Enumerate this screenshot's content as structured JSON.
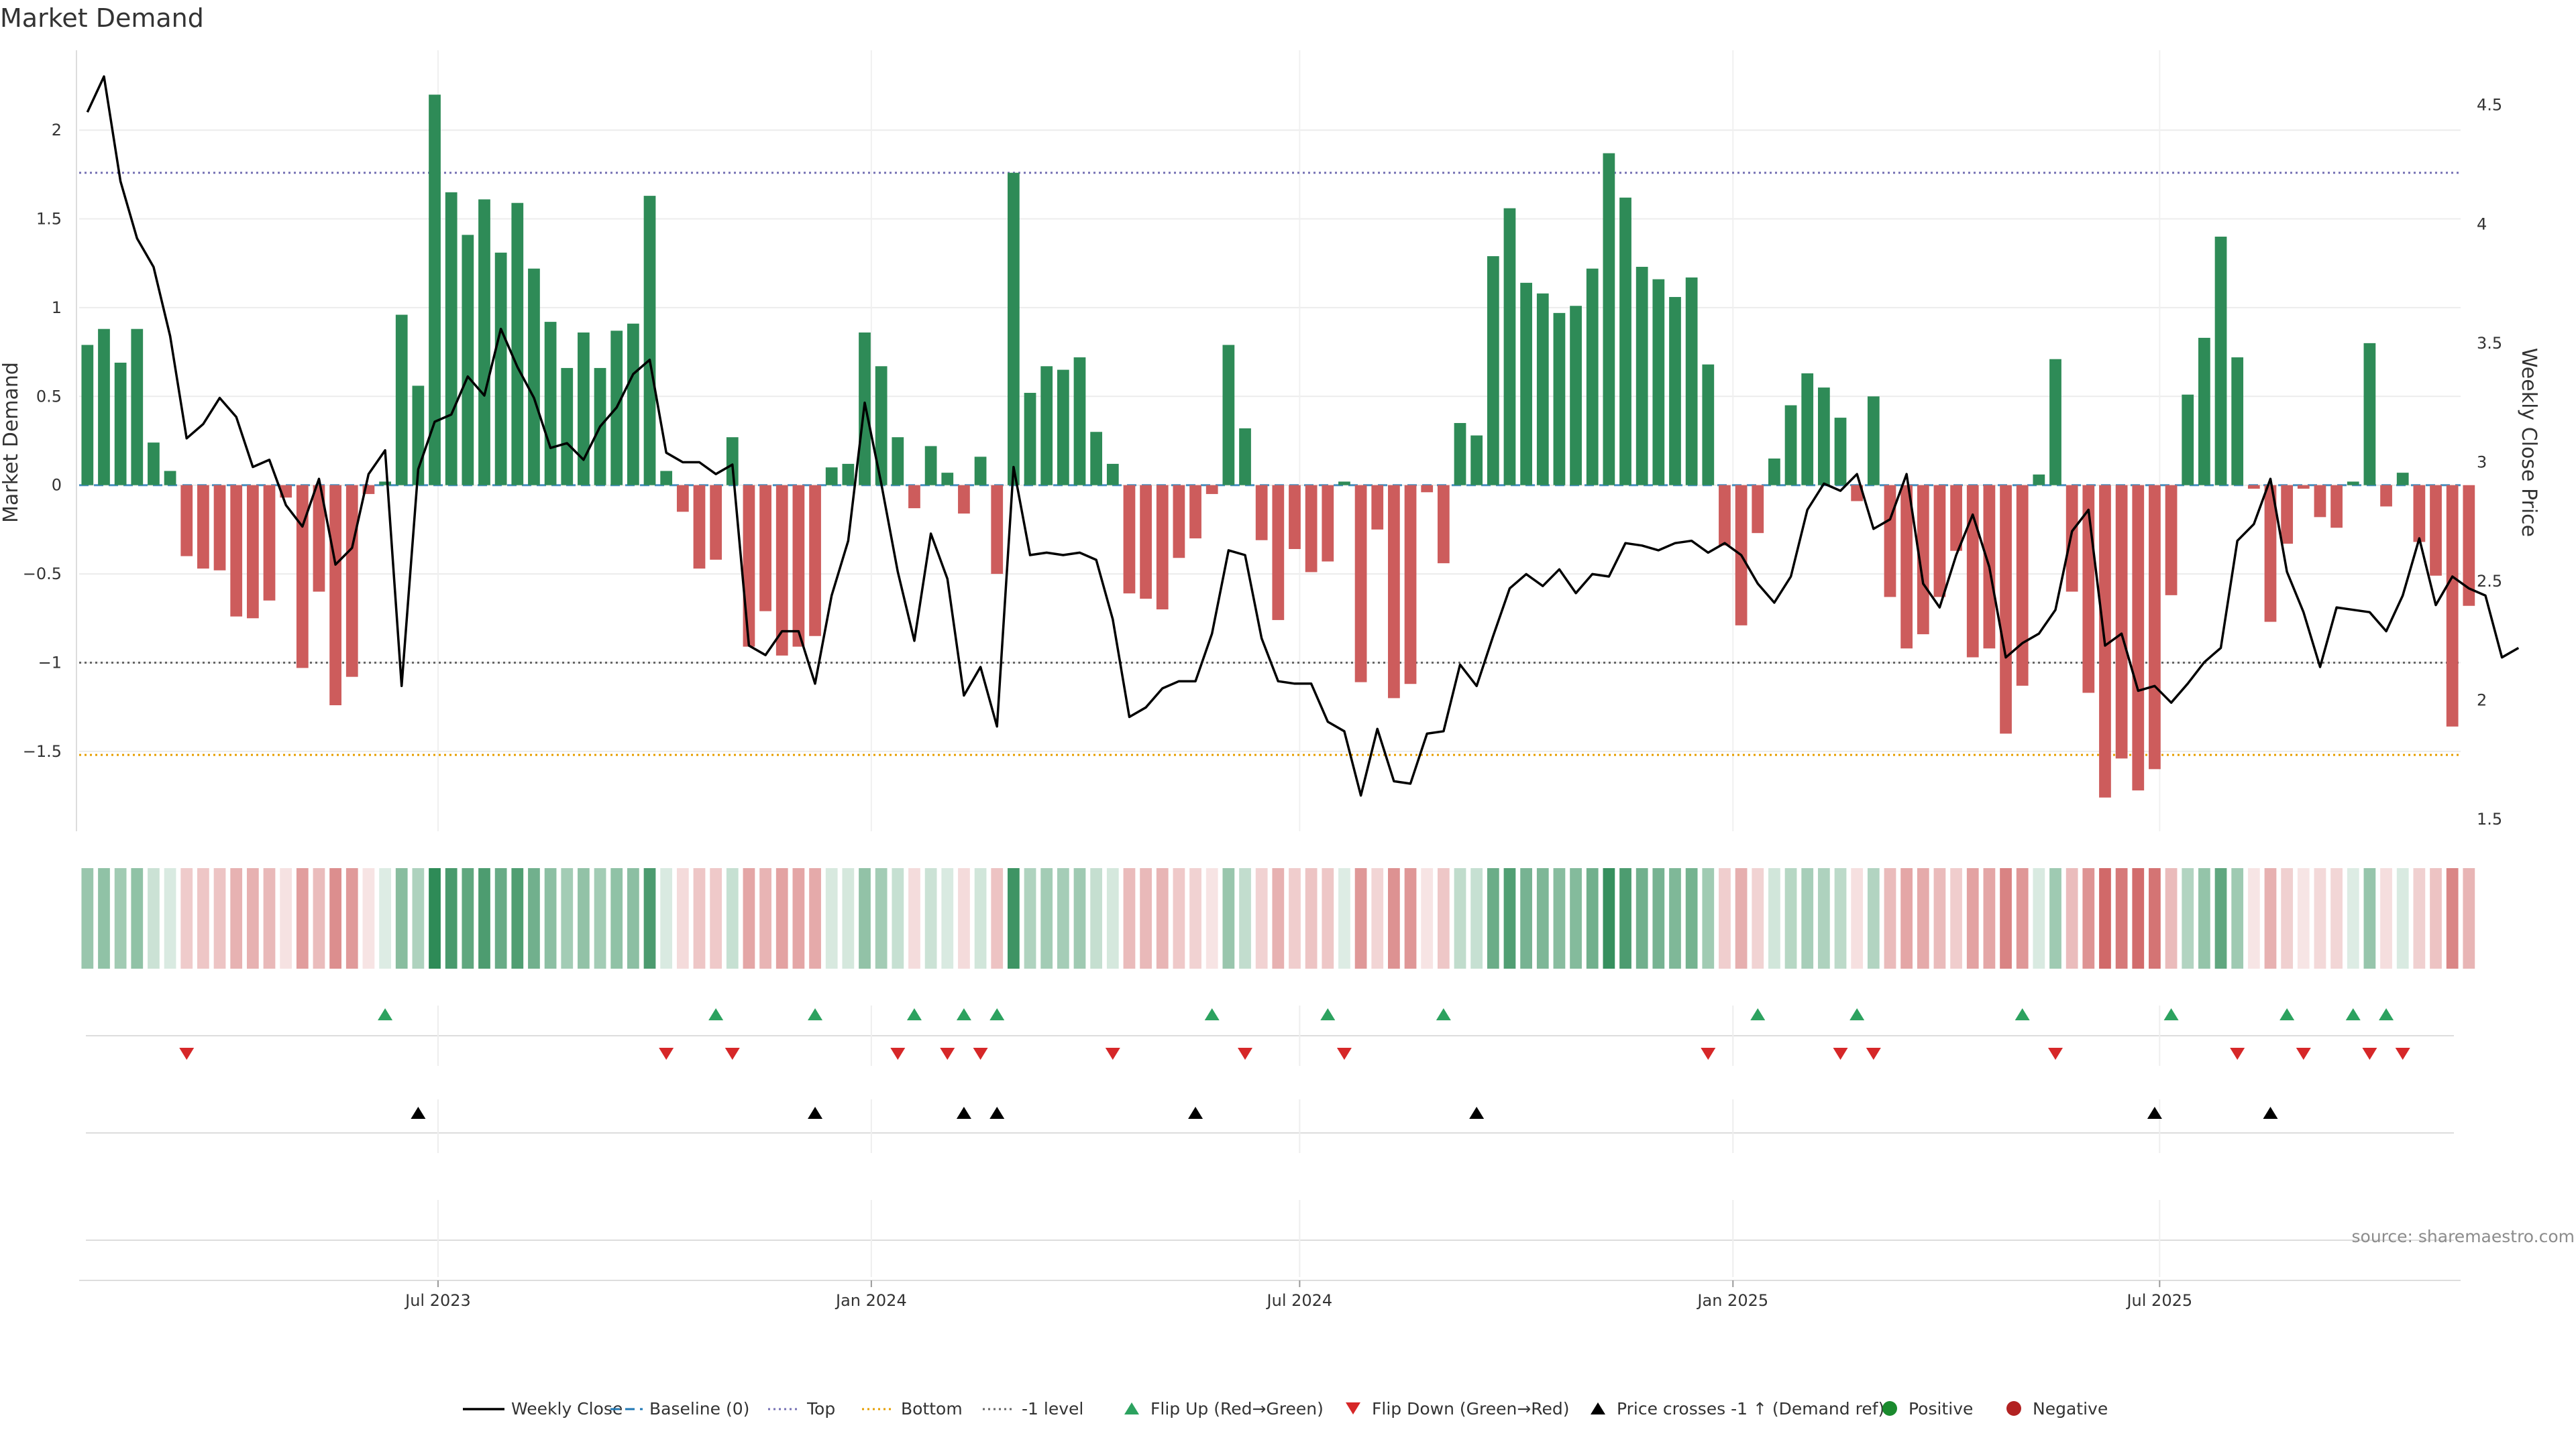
{
  "title": "Market Demand",
  "source": "source: sharemaestro.com",
  "colors": {
    "positive": "#2e8b57",
    "negative": "#cd5c5c",
    "price": "#000000",
    "top": "#7570b3",
    "bottom": "#e69f00",
    "minus1": "#666666",
    "baseline": "#1f77b4",
    "flip_up": "#2ca25f",
    "flip_down": "#d62728",
    "cross": "#000000",
    "legend_positive": "#1a8a2e",
    "legend_negative": "#b22222"
  },
  "chart_data": {
    "type": "bar+line",
    "title": "Market Demand",
    "ylabel_left": "Market Demand",
    "ylabel_right": "Weekly Close Price",
    "ylim_left": [
      -1.95,
      2.45
    ],
    "ylim_right": [
      1.45,
      4.73
    ],
    "left_ticks": [
      -1.5,
      -1,
      -0.5,
      0,
      0.5,
      1,
      1.5,
      2
    ],
    "left_tick_labels": [
      "−1.5",
      "−1",
      "−0.5",
      "0",
      "0.5",
      "1",
      "1.5",
      "2"
    ],
    "right_ticks": [
      1.5,
      2,
      2.5,
      3,
      3.5,
      4,
      4.5
    ],
    "right_tick_labels": [
      "1.5",
      "2",
      "2.5",
      "3",
      "3.5",
      "4",
      "4.5"
    ],
    "x_ticks": [
      {
        "label": "Jul 2023",
        "week": 21.2
      },
      {
        "label": "Jan 2024",
        "week": 47.4
      },
      {
        "label": "Jul 2024",
        "week": 73.3
      },
      {
        "label": "Jan 2025",
        "week": 99.5
      },
      {
        "label": "Jul 2025",
        "week": 125.3
      }
    ],
    "levels": {
      "top": 1.76,
      "bottom": -1.52,
      "minus1": -1.0,
      "baseline": 0
    },
    "weeks": 144,
    "demand": [
      0.79,
      0.88,
      0.69,
      0.88,
      0.24,
      0.08,
      -0.4,
      -0.47,
      -0.48,
      -0.74,
      -0.75,
      -0.65,
      -0.07,
      -1.03,
      -0.6,
      -1.24,
      -1.08,
      -0.05,
      0.02,
      0.96,
      0.56,
      2.2,
      1.65,
      1.41,
      1.61,
      1.31,
      1.59,
      1.22,
      0.92,
      0.66,
      0.86,
      0.66,
      0.87,
      0.91,
      1.63,
      0.08,
      -0.15,
      -0.47,
      -0.42,
      0.27,
      -0.91,
      -0.71,
      -0.96,
      -0.91,
      -0.85,
      0.1,
      0.12,
      0.86,
      0.67,
      0.27,
      -0.13,
      0.22,
      0.07,
      -0.16,
      0.16,
      -0.5,
      1.76,
      0.52,
      0.67,
      0.65,
      0.72,
      0.3,
      0.12,
      -0.61,
      -0.64,
      -0.7,
      -0.41,
      -0.3,
      -0.05,
      0.79,
      0.32,
      -0.31,
      -0.76,
      -0.36,
      -0.49,
      -0.43,
      0.02,
      -1.11,
      -0.25,
      -1.2,
      -1.12,
      -0.04,
      -0.44,
      0.35,
      0.28,
      1.29,
      1.56,
      1.14,
      1.08,
      0.97,
      1.01,
      1.22,
      1.87,
      1.62,
      1.23,
      1.16,
      1.06,
      1.17,
      0.68,
      -0.34,
      -0.79,
      -0.27,
      0.15,
      0.45,
      0.63,
      0.55,
      0.38,
      -0.09,
      0.5,
      -0.63,
      -0.92,
      -0.84,
      -0.63,
      -0.37,
      -0.97,
      -0.92,
      -1.4,
      -1.13,
      0.06,
      0.71,
      -0.6,
      -1.17,
      -1.76,
      -1.54,
      -1.72,
      -1.6,
      -0.62,
      0.51,
      0.83,
      1.4,
      0.72,
      -0.02,
      -0.77,
      -0.33,
      -0.02,
      -0.18,
      -0.24,
      0.02,
      0.8,
      -0.12,
      0.07,
      -0.32,
      -0.51,
      -1.36,
      -0.68
    ],
    "price": [
      4.47,
      4.62,
      4.18,
      3.94,
      3.82,
      3.53,
      3.1,
      3.16,
      3.27,
      3.19,
      2.98,
      3.01,
      2.82,
      2.73,
      2.93,
      2.57,
      2.64,
      2.95,
      3.05,
      2.06,
      2.97,
      3.17,
      3.2,
      3.36,
      3.28,
      3.56,
      3.4,
      3.27,
      3.06,
      3.08,
      3.01,
      3.15,
      3.23,
      3.37,
      3.43,
      3.04,
      3.0,
      3.0,
      2.95,
      2.99,
      2.23,
      2.19,
      2.29,
      2.29,
      2.07,
      2.44,
      2.67,
      3.25,
      2.91,
      2.54,
      2.25,
      2.7,
      2.51,
      2.02,
      2.14,
      1.89,
      2.98,
      2.61,
      2.62,
      2.61,
      2.62,
      2.59,
      2.34,
      1.93,
      1.97,
      2.05,
      2.08,
      2.08,
      2.28,
      2.63,
      2.61,
      2.26,
      2.08,
      2.07,
      2.07,
      1.91,
      1.87,
      1.6,
      1.88,
      1.66,
      1.65,
      1.86,
      1.87,
      2.15,
      2.06,
      2.27,
      2.47,
      2.53,
      2.48,
      2.55,
      2.45,
      2.53,
      2.52,
      2.66,
      2.65,
      2.63,
      2.66,
      2.67,
      2.62,
      2.66,
      2.61,
      2.49,
      2.41,
      2.52,
      2.8,
      2.91,
      2.88,
      2.95,
      2.72,
      2.76,
      2.95,
      2.49,
      2.39,
      2.61,
      2.78,
      2.56,
      2.18,
      2.24,
      2.28,
      2.38,
      2.71,
      2.8,
      2.23,
      2.28,
      2.04,
      2.06,
      1.99,
      2.07,
      2.16,
      2.22,
      2.67,
      2.74,
      2.93,
      2.54,
      2.37,
      2.14,
      2.39,
      2.38,
      2.37,
      2.29,
      2.44,
      2.68,
      2.4,
      2.52,
      2.47,
      2.44,
      2.18,
      2.22
    ],
    "flip_up_weeks": [
      18,
      38,
      44,
      50,
      53,
      55,
      68,
      75,
      82,
      101,
      107,
      117,
      126,
      133,
      137,
      139
    ],
    "flip_down_weeks": [
      6,
      35,
      39,
      49,
      52,
      54,
      62,
      70,
      76,
      98,
      106,
      108,
      119,
      130,
      134,
      138,
      140
    ],
    "cross_up_weeks": [
      20,
      44,
      53,
      55,
      67,
      84,
      125,
      132
    ],
    "legend": [
      {
        "label": "Weekly Close",
        "marker": "line"
      },
      {
        "label": "Baseline (0)",
        "marker": "dash"
      },
      {
        "label": "Top",
        "marker": "dotted"
      },
      {
        "label": "Bottom",
        "marker": "dotted"
      },
      {
        "label": "-1 level",
        "marker": "dotted"
      },
      {
        "label": "Flip Up (Red→Green)",
        "marker": "triangle-up"
      },
      {
        "label": "Flip Down (Green→Red)",
        "marker": "triangle-down"
      },
      {
        "label": "Price crosses -1 ↑ (Demand ref)",
        "marker": "triangle-up"
      },
      {
        "label": "Positive",
        "marker": "circle"
      },
      {
        "label": "Negative",
        "marker": "circle"
      }
    ]
  }
}
